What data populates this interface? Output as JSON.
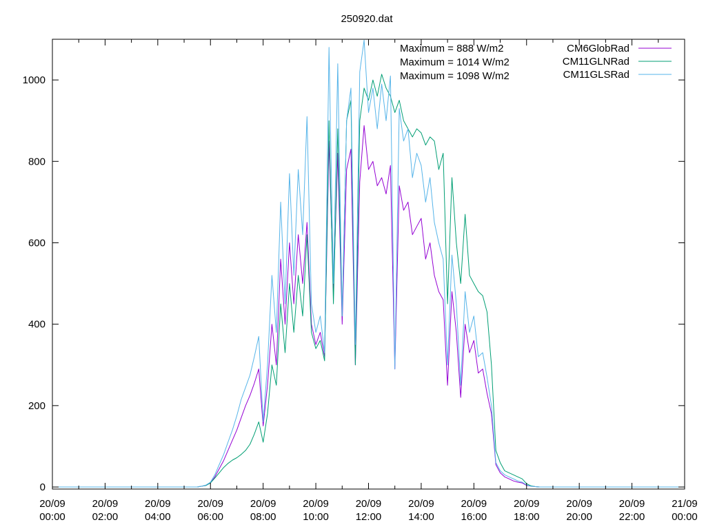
{
  "chart_data": {
    "type": "line",
    "title": "250920.dat",
    "xlabel": "",
    "ylabel": "",
    "xlim_hours": [
      0,
      24
    ],
    "ylim": [
      -5,
      1100
    ],
    "grid": false,
    "legend_placement": "top-right",
    "x_tick_labels": [
      [
        "20/09",
        "00:00"
      ],
      [
        "20/09",
        "02:00"
      ],
      [
        "20/09",
        "04:00"
      ],
      [
        "20/09",
        "06:00"
      ],
      [
        "20/09",
        "08:00"
      ],
      [
        "20/09",
        "10:00"
      ],
      [
        "20/09",
        "12:00"
      ],
      [
        "20/09",
        "14:00"
      ],
      [
        "20/09",
        "16:00"
      ],
      [
        "20/09",
        "18:00"
      ],
      [
        "20/09",
        "20:00"
      ],
      [
        "20/09",
        "22:00"
      ],
      [
        "21/09",
        "00:00"
      ]
    ],
    "y_ticks": [
      0,
      200,
      400,
      600,
      800,
      1000
    ],
    "annotations": [
      "Maximum = 888 W/m2",
      "Maximum = 1014 W/m2",
      "Maximum = 1098 W/m2"
    ],
    "sample_start_hour": 5.5,
    "sample_step_minutes": 10,
    "series": [
      {
        "name": "CM6GlobRad",
        "color": "#9400d3",
        "values": [
          0,
          2,
          4,
          10,
          25,
          45,
          65,
          90,
          115,
          140,
          170,
          200,
          225,
          255,
          290,
          150,
          250,
          400,
          300,
          560,
          400,
          600,
          450,
          620,
          500,
          650,
          400,
          350,
          380,
          320,
          850,
          480,
          820,
          400,
          780,
          830,
          300,
          750,
          888,
          780,
          800,
          740,
          760,
          720,
          790,
          290,
          740,
          680,
          700,
          620,
          640,
          660,
          560,
          600,
          520,
          480,
          460,
          250,
          480,
          380,
          220,
          400,
          330,
          360,
          280,
          290,
          230,
          180,
          55,
          35,
          25,
          20,
          15,
          12,
          10,
          4,
          2,
          1,
          0
        ]
      },
      {
        "name": "CM11GLNRad",
        "color": "#009e73",
        "values": [
          0,
          2,
          4,
          10,
          22,
          35,
          48,
          58,
          66,
          72,
          80,
          90,
          105,
          130,
          160,
          110,
          180,
          300,
          250,
          450,
          330,
          500,
          380,
          520,
          420,
          620,
          380,
          340,
          360,
          310,
          900,
          450,
          880,
          420,
          900,
          950,
          300,
          900,
          980,
          950,
          1000,
          960,
          1014,
          980,
          960,
          920,
          950,
          900,
          880,
          860,
          880,
          870,
          840,
          860,
          850,
          780,
          820,
          450,
          760,
          600,
          500,
          670,
          520,
          500,
          480,
          470,
          430,
          300,
          90,
          60,
          40,
          35,
          30,
          25,
          20,
          8,
          3,
          1,
          0
        ]
      },
      {
        "name": "CM11GLSRad",
        "color": "#56b4e9",
        "values": [
          0,
          2,
          5,
          12,
          30,
          55,
          80,
          110,
          140,
          175,
          215,
          245,
          275,
          320,
          370,
          160,
          300,
          520,
          380,
          700,
          450,
          770,
          520,
          780,
          620,
          910,
          450,
          380,
          420,
          330,
          1080,
          500,
          1040,
          420,
          900,
          980,
          350,
          1020,
          1098,
          920,
          980,
          880,
          990,
          900,
          1010,
          290,
          930,
          850,
          880,
          760,
          820,
          790,
          700,
          760,
          650,
          600,
          560,
          300,
          570,
          450,
          250,
          480,
          380,
          420,
          320,
          330,
          270,
          200,
          60,
          40,
          30,
          25,
          20,
          15,
          12,
          5,
          2,
          1,
          0
        ]
      }
    ]
  }
}
